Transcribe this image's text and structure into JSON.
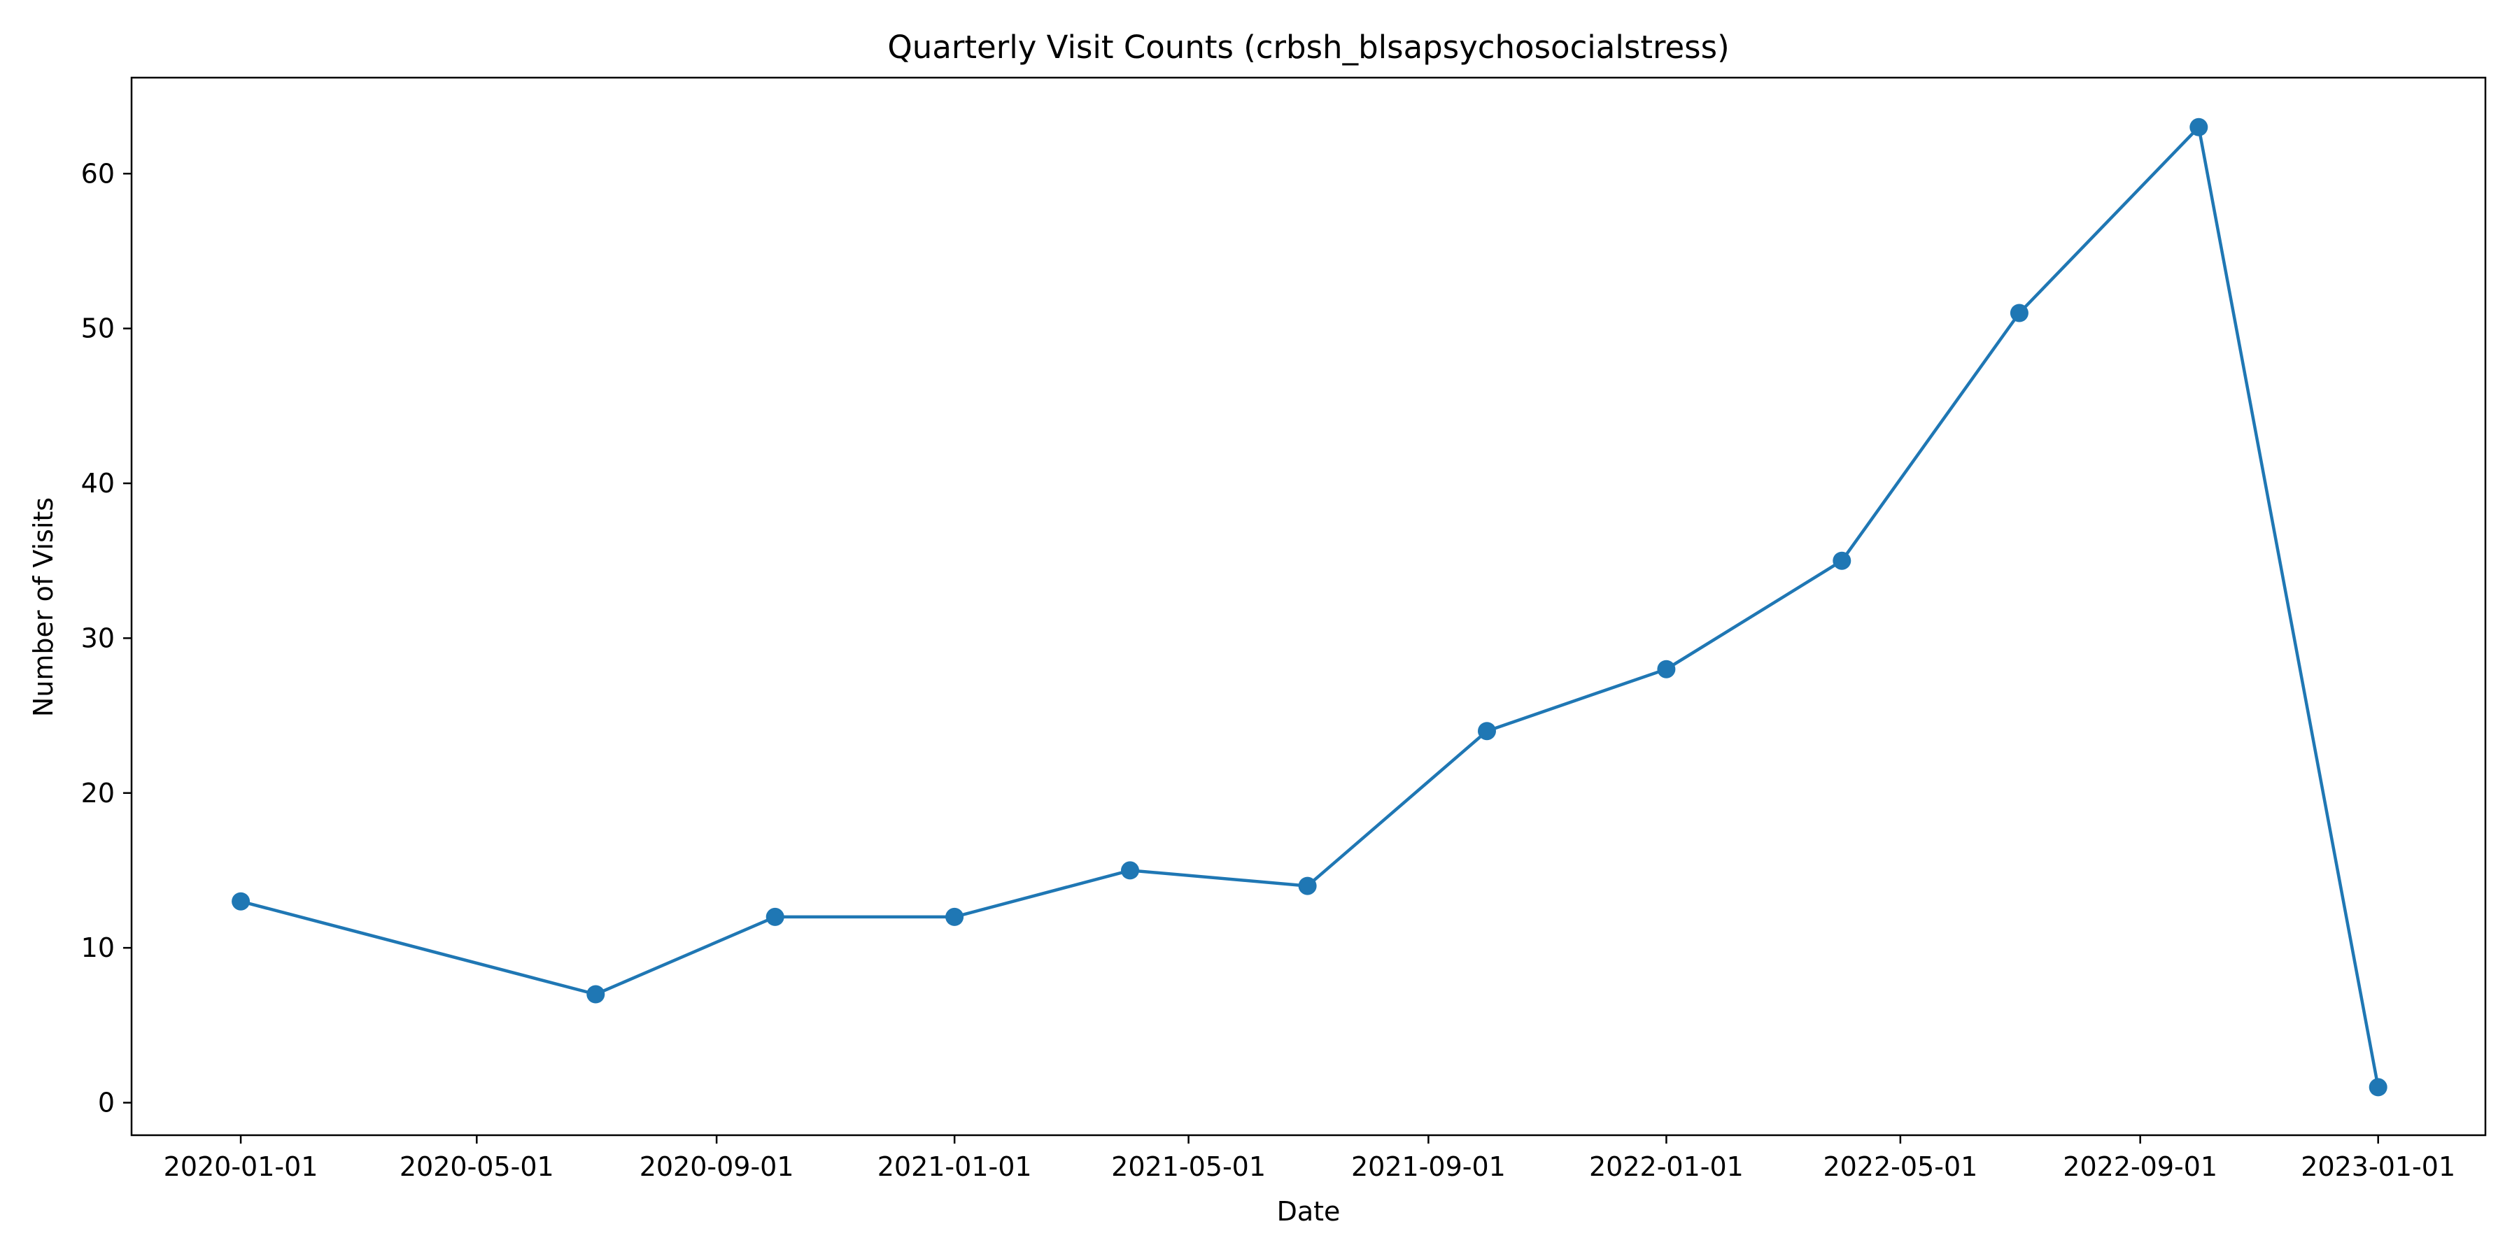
{
  "chart_data": {
    "type": "line",
    "title": "Quarterly Visit Counts (crbsh_blsapsychosocialstress)",
    "xlabel": "Date",
    "ylabel": "Number of Visits",
    "xlim": [
      "2019-11-06",
      "2023-02-25"
    ],
    "ylim": [
      -2.1,
      66.2
    ],
    "x_ticks": [
      "2020-01-01",
      "2020-05-01",
      "2020-09-01",
      "2021-01-01",
      "2021-05-01",
      "2021-09-01",
      "2022-01-01",
      "2022-05-01",
      "2022-09-01",
      "2023-01-01"
    ],
    "y_ticks": [
      0,
      10,
      20,
      30,
      40,
      50,
      60
    ],
    "grid": false,
    "color": "#1f77b4",
    "series": [
      {
        "x": [
          "2020-01-01",
          "2020-07-01",
          "2020-10-01",
          "2021-01-01",
          "2021-04-01",
          "2021-07-01",
          "2021-10-01",
          "2022-01-01",
          "2022-04-01",
          "2022-07-01",
          "2022-10-01",
          "2023-01-01"
        ],
        "y": [
          13,
          7,
          12,
          12,
          15,
          14,
          24,
          28,
          35,
          51,
          63,
          1
        ]
      }
    ]
  }
}
